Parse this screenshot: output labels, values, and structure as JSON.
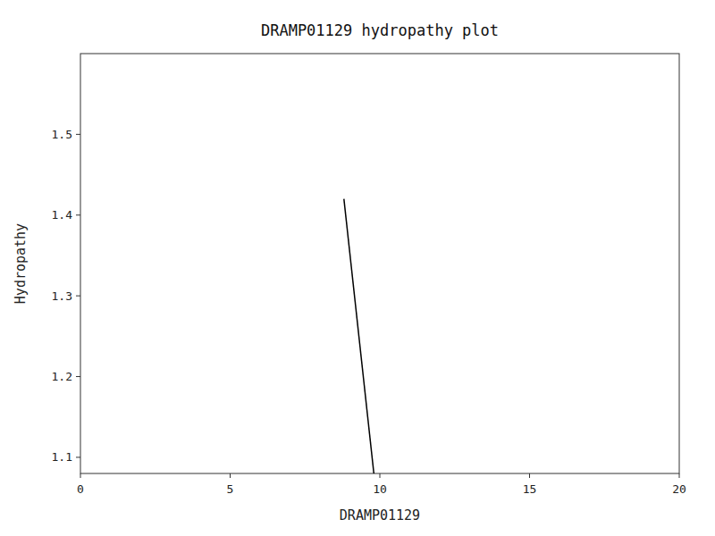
{
  "chart_data": {
    "type": "line",
    "title": "DRAMP01129 hydropathy plot",
    "xlabel": "DRAMP01129",
    "ylabel": "Hydropathy",
    "x": [
      8.8,
      9.8
    ],
    "values": [
      1.42,
      1.08
    ],
    "color": "#000000",
    "xlim": [
      0,
      20
    ],
    "ylim": [
      1.08,
      1.6
    ],
    "xticks": [
      0,
      5,
      10,
      15,
      20
    ],
    "yticks": [
      1.1,
      1.2,
      1.3,
      1.4,
      1.5
    ],
    "grid": false
  }
}
